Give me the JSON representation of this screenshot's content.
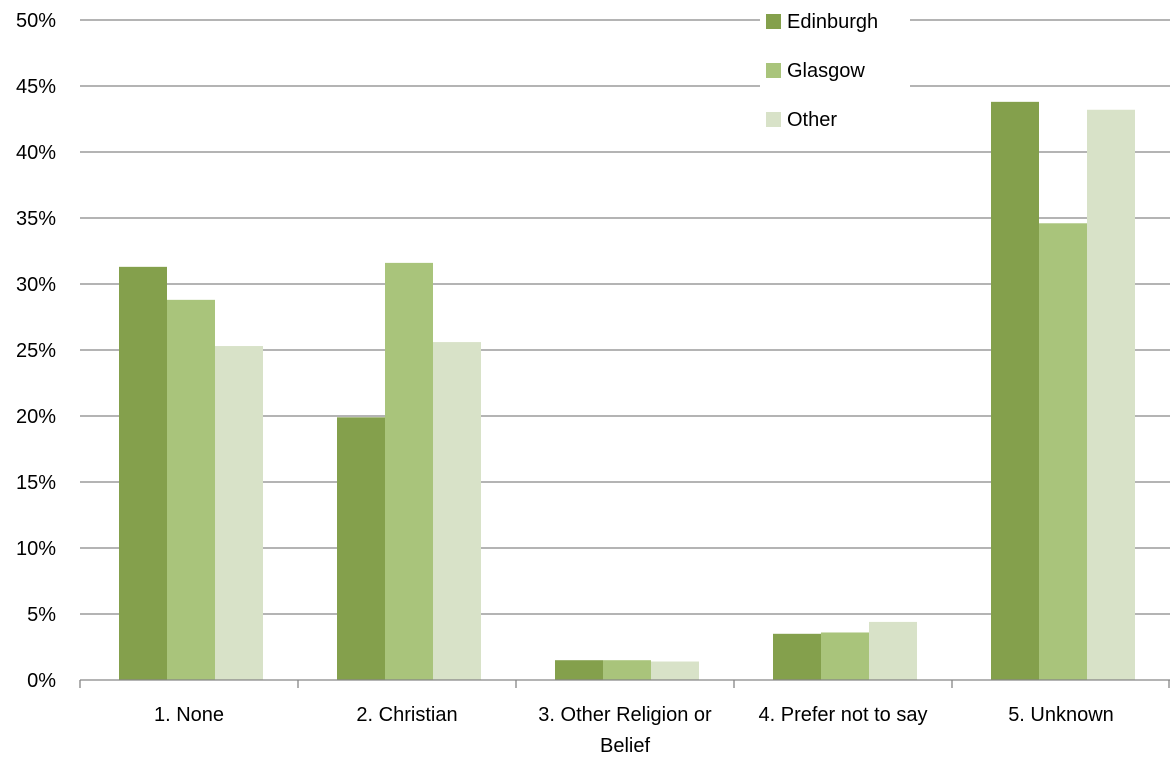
{
  "chart_data": {
    "type": "bar",
    "categories": [
      "1. None",
      "2. Christian",
      "3. Other Religion or Belief",
      "4. Prefer not to say",
      "5. Unknown"
    ],
    "category_label_lines": [
      [
        "1. None"
      ],
      [
        "2. Christian"
      ],
      [
        "3. Other Religion or",
        "Belief"
      ],
      [
        "4. Prefer not to say"
      ],
      [
        "5. Unknown"
      ]
    ],
    "series": [
      {
        "name": "Edinburgh",
        "color": "#84a04c",
        "values": [
          31.3,
          19.9,
          1.5,
          3.5,
          43.8
        ]
      },
      {
        "name": "Glasgow",
        "color": "#a9c47b",
        "values": [
          28.8,
          31.6,
          1.5,
          3.6,
          34.6
        ]
      },
      {
        "name": "Other",
        "color": "#d8e2c8",
        "values": [
          25.3,
          25.6,
          1.4,
          4.4,
          43.2
        ]
      }
    ],
    "ylim": [
      0,
      50
    ],
    "yticks": [
      0,
      5,
      10,
      15,
      20,
      25,
      30,
      35,
      40,
      45,
      50
    ],
    "ytick_labels": [
      "0%",
      "5%",
      "10%",
      "15%",
      "20%",
      "25%",
      "30%",
      "35%",
      "40%",
      "45%",
      "50%"
    ],
    "grid": true,
    "legend_position": "top-right",
    "gridline_color": "#868686"
  }
}
